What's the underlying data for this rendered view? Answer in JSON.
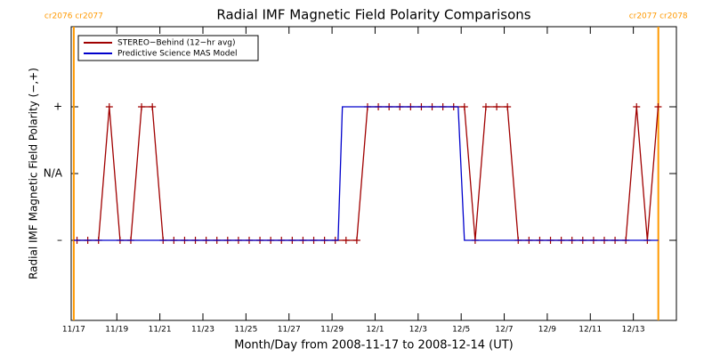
{
  "chart_data": {
    "type": "line",
    "title": "Radial IMF Magnetic Field Polarity Comparisons",
    "x_label": "Month/Day from 2008-11-17 to 2008-12-14 (UT)",
    "y_label": "Radial IMF Magnetic Field Polarity (−,+)",
    "xlim": [
      -0.12,
      28
    ],
    "ylim": [
      -2.2,
      2.2
    ],
    "xticks": [
      {
        "value": 0,
        "label": "11/17"
      },
      {
        "value": 2,
        "label": "11/19"
      },
      {
        "value": 4,
        "label": "11/21"
      },
      {
        "value": 6,
        "label": "11/23"
      },
      {
        "value": 8,
        "label": "11/25"
      },
      {
        "value": 10,
        "label": "11/27"
      },
      {
        "value": 12,
        "label": "11/29"
      },
      {
        "value": 14,
        "label": "12/1"
      },
      {
        "value": 16,
        "label": "12/3"
      },
      {
        "value": 18,
        "label": "12/5"
      },
      {
        "value": 20,
        "label": "12/7"
      },
      {
        "value": 22,
        "label": "12/9"
      },
      {
        "value": 24,
        "label": "12/11"
      },
      {
        "value": 26,
        "label": "12/13"
      }
    ],
    "yticks": [
      {
        "value": -1,
        "label": "–"
      },
      {
        "value": 0,
        "label": "N/A"
      },
      {
        "value": 1,
        "label": "+"
      }
    ],
    "legend": "upper left",
    "boundaries": [
      {
        "x": 0,
        "label": "cr2076 cr2077"
      },
      {
        "x": 27.16,
        "label": "cr2077 cr2078"
      }
    ],
    "boundary_color": "#ff9900",
    "series": [
      {
        "name": "STEREO−Behind (12−hr avg)",
        "color": "#a00000",
        "markers": true,
        "x": [
          0.15,
          0.65,
          1.15,
          1.65,
          2.15,
          2.65,
          3.15,
          3.65,
          4.15,
          4.65,
          5.15,
          5.65,
          6.15,
          6.65,
          7.15,
          7.65,
          8.15,
          8.65,
          9.15,
          9.65,
          10.15,
          10.65,
          11.15,
          11.65,
          12.15,
          12.65,
          13.15,
          13.65,
          14.15,
          14.65,
          15.15,
          15.65,
          16.15,
          16.65,
          17.15,
          17.65,
          18.15,
          18.65,
          19.15,
          19.65,
          20.15,
          20.65,
          21.15,
          21.65,
          22.15,
          22.65,
          23.15,
          23.65,
          24.15,
          24.65,
          25.15,
          25.65,
          26.15,
          26.65,
          27.15
        ],
        "values": [
          -1,
          -1,
          -1,
          1,
          -1,
          -1,
          1,
          1,
          -1,
          -1,
          -1,
          -1,
          -1,
          -1,
          -1,
          -1,
          -1,
          -1,
          -1,
          -1,
          -1,
          -1,
          -1,
          -1,
          -1,
          -1,
          -1,
          1,
          1,
          1,
          1,
          1,
          1,
          1,
          1,
          1,
          1,
          -1,
          1,
          1,
          1,
          -1,
          -1,
          -1,
          -1,
          -1,
          -1,
          -1,
          -1,
          -1,
          -1,
          -1,
          1,
          -1,
          1
        ]
      },
      {
        "name": "Predictive Science MAS Model",
        "color": "#0000cc",
        "markers": false,
        "x": [
          0,
          12.28,
          12.48,
          17.86,
          18.15,
          27.16
        ],
        "values": [
          -1,
          -1,
          1,
          1,
          -1,
          -1
        ]
      }
    ]
  }
}
